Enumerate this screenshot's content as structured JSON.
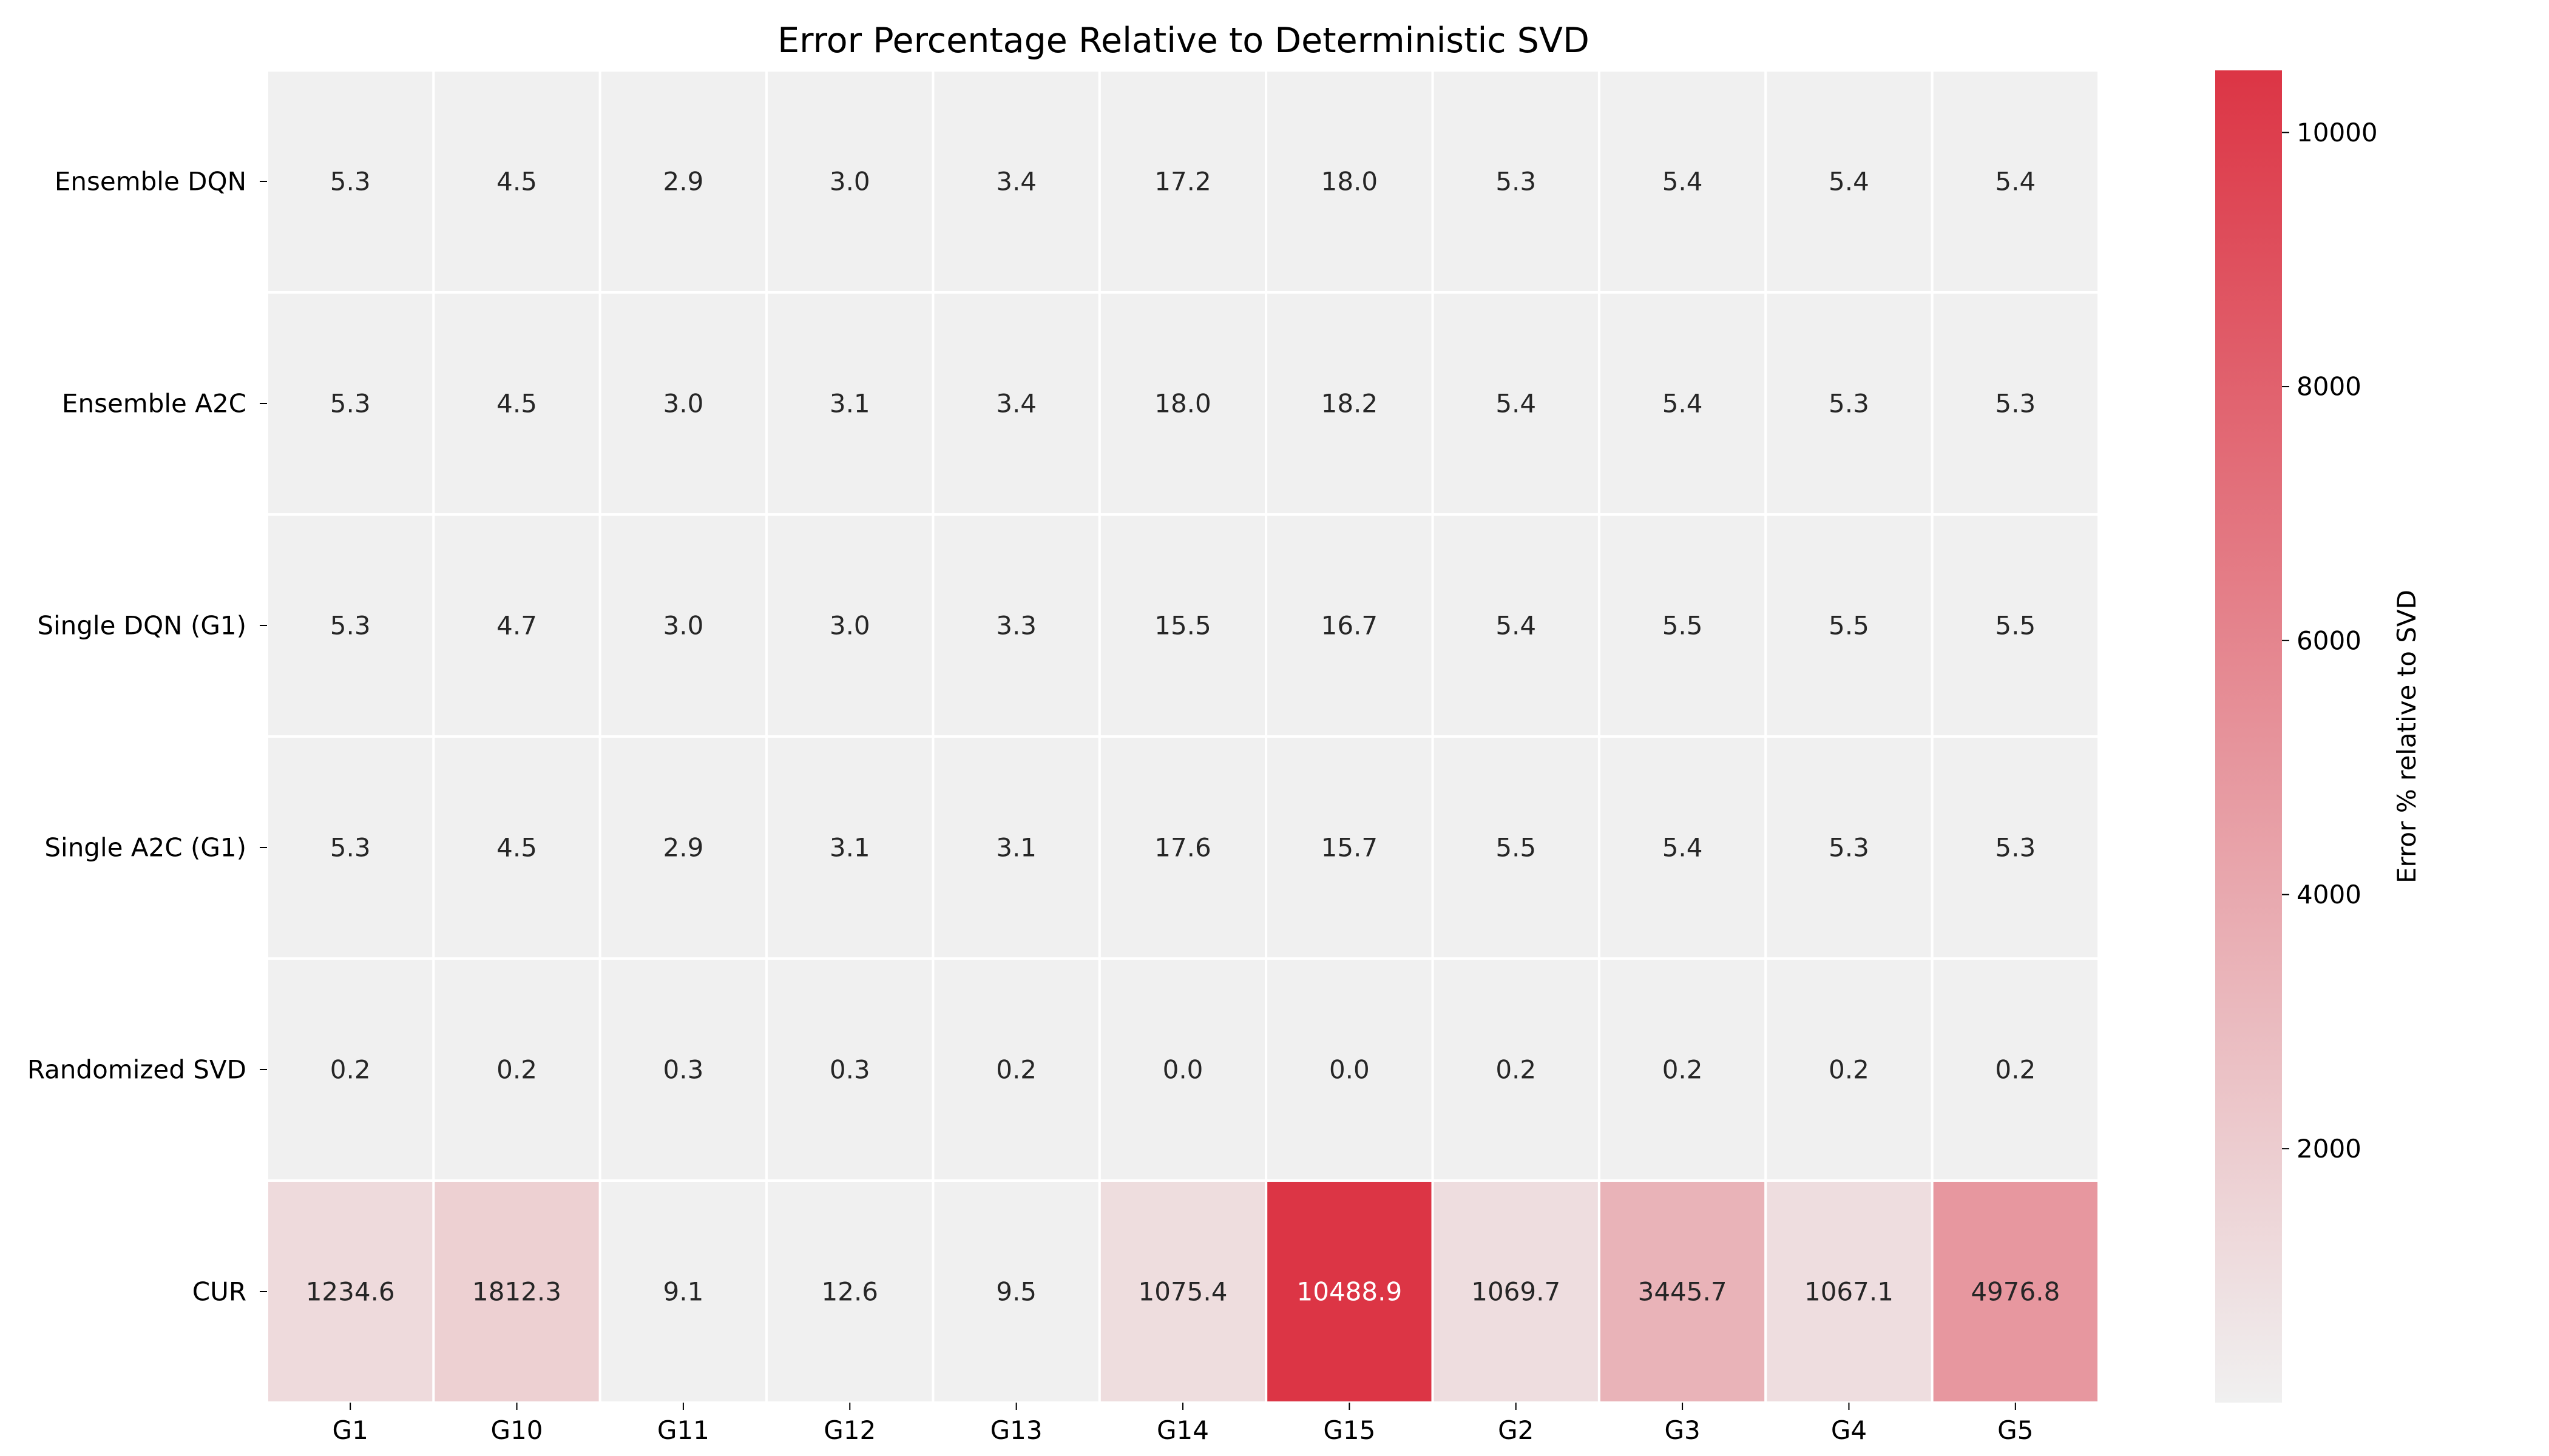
{
  "chart_data": {
    "type": "heatmap",
    "title": "Error Percentage Relative to Deterministic SVD",
    "x_categories": [
      "G1",
      "G10",
      "G11",
      "G12",
      "G13",
      "G14",
      "G15",
      "G2",
      "G3",
      "G4",
      "G5"
    ],
    "y_categories": [
      "Ensemble DQN",
      "Ensemble A2C",
      "Single DQN (G1)",
      "Single A2C (G1)",
      "Randomized SVD",
      "CUR"
    ],
    "values": [
      [
        5.3,
        4.5,
        2.9,
        3.0,
        3.4,
        17.2,
        18.0,
        5.3,
        5.4,
        5.4,
        5.4
      ],
      [
        5.3,
        4.5,
        3.0,
        3.1,
        3.4,
        18.0,
        18.2,
        5.4,
        5.4,
        5.3,
        5.3
      ],
      [
        5.3,
        4.7,
        3.0,
        3.0,
        3.3,
        15.5,
        16.7,
        5.4,
        5.5,
        5.5,
        5.5
      ],
      [
        5.3,
        4.5,
        2.9,
        3.1,
        3.1,
        17.6,
        15.7,
        5.5,
        5.4,
        5.3,
        5.3
      ],
      [
        0.2,
        0.2,
        0.3,
        0.3,
        0.2,
        0.0,
        0.0,
        0.2,
        0.2,
        0.2,
        0.2
      ],
      [
        1234.6,
        1812.3,
        9.1,
        12.6,
        9.5,
        1075.4,
        10488.9,
        1069.7,
        3445.7,
        1067.1,
        4976.8
      ]
    ],
    "value_format": "0.0",
    "colorbar": {
      "label": "Error % relative to SVD",
      "range": [
        0,
        10488.9
      ],
      "ticks": [
        2000,
        4000,
        6000,
        8000,
        10000
      ],
      "color_low": "#f0f0f0",
      "color_high": "#dc3545"
    },
    "cell_text_color_dark": "#262626",
    "cell_text_color_light": "#ffffff",
    "grid": "white cell borders",
    "legend": "colorbar right"
  }
}
